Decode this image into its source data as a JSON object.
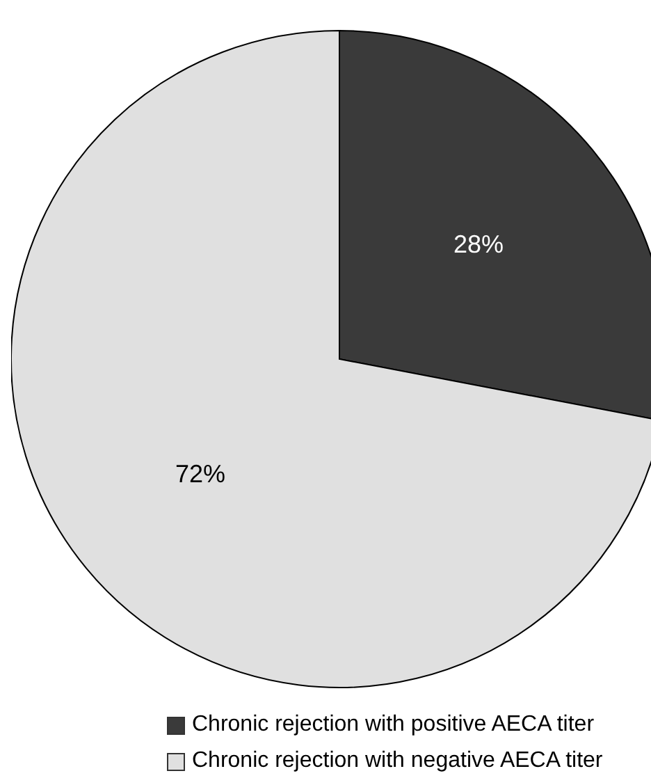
{
  "chart_data": {
    "type": "pie",
    "categories": [
      "Chronic rejection with positive AECA titer",
      "Chronic rejection with negative AECA titer"
    ],
    "values": [
      28,
      72
    ],
    "colors": [
      "#3a3a3a",
      "#e0e0e0"
    ],
    "value_labels": [
      "28%",
      "72%"
    ],
    "legend": "bottom"
  }
}
